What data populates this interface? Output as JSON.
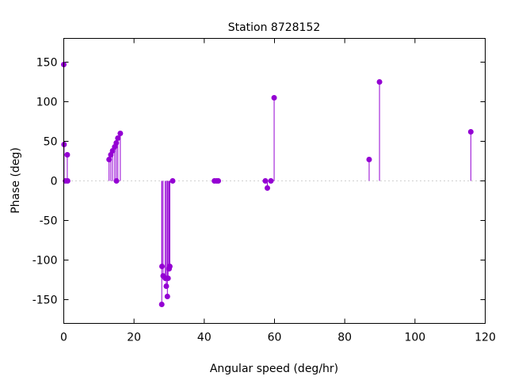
{
  "chart_data": {
    "type": "impulse",
    "title": "Station 8728152",
    "xlabel": "Angular speed (deg/hr)",
    "ylabel": "Phase (deg)",
    "xlim": [
      0,
      120
    ],
    "ylim": [
      -180,
      180
    ],
    "xticks": [
      0,
      20,
      40,
      60,
      80,
      100,
      120
    ],
    "yticks": [
      -150,
      -100,
      -50,
      0,
      50,
      100,
      150
    ],
    "grid": false,
    "color": "#9400d3",
    "points": [
      {
        "x": 0.0,
        "y": 147
      },
      {
        "x": 0.08,
        "y": 46
      },
      {
        "x": 0.5,
        "y": 0
      },
      {
        "x": 1.0,
        "y": 33
      },
      {
        "x": 1.1,
        "y": 0
      },
      {
        "x": 12.9,
        "y": 27
      },
      {
        "x": 13.4,
        "y": 33
      },
      {
        "x": 13.9,
        "y": 38
      },
      {
        "x": 14.5,
        "y": 43
      },
      {
        "x": 14.96,
        "y": 48
      },
      {
        "x": 15.0,
        "y": 0
      },
      {
        "x": 15.4,
        "y": 54
      },
      {
        "x": 16.1,
        "y": 60
      },
      {
        "x": 27.9,
        "y": -156
      },
      {
        "x": 27.97,
        "y": -108
      },
      {
        "x": 28.3,
        "y": -120
      },
      {
        "x": 28.9,
        "y": -123
      },
      {
        "x": 29.2,
        "y": -133
      },
      {
        "x": 29.5,
        "y": -146
      },
      {
        "x": 29.7,
        "y": -123
      },
      {
        "x": 30.0,
        "y": -111
      },
      {
        "x": 30.2,
        "y": -108
      },
      {
        "x": 31.0,
        "y": 0
      },
      {
        "x": 42.9,
        "y": 0
      },
      {
        "x": 43.5,
        "y": 0
      },
      {
        "x": 44.0,
        "y": 0
      },
      {
        "x": 57.4,
        "y": 0
      },
      {
        "x": 57.97,
        "y": -9
      },
      {
        "x": 58.98,
        "y": 0
      },
      {
        "x": 59.9,
        "y": 105
      },
      {
        "x": 86.95,
        "y": 27
      },
      {
        "x": 89.9,
        "y": 125
      },
      {
        "x": 115.9,
        "y": 62
      }
    ]
  }
}
